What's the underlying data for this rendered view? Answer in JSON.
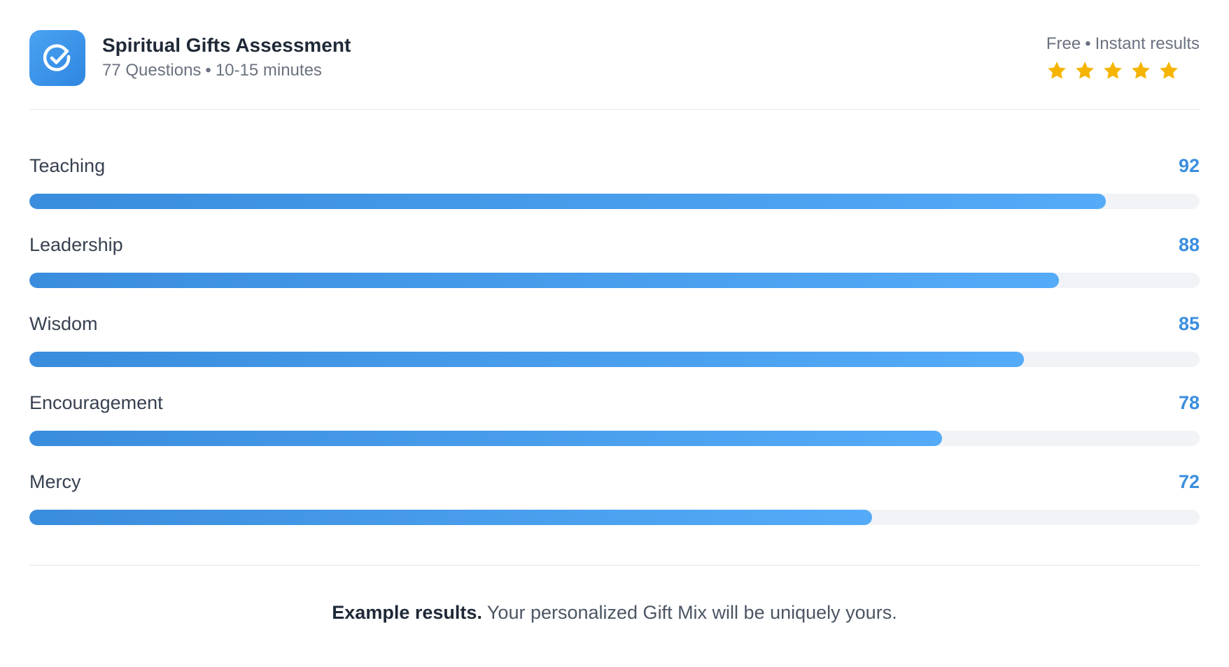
{
  "header": {
    "title": "Spiritual Gifts Assessment",
    "questions": "77 Questions",
    "separator": "•",
    "duration": "10-15 minutes",
    "price": "Free",
    "delivery": "Instant results",
    "rating_stars": 5,
    "icon": "check-circle-icon",
    "star_icon": "star-icon",
    "icon_color": "#3b8ede",
    "star_color": "#f5b400"
  },
  "results": [
    {
      "label": "Teaching",
      "score": "92",
      "fill_fraction": 0.92
    },
    {
      "label": "Leadership",
      "score": "88",
      "fill_fraction": 0.88
    },
    {
      "label": "Wisdom",
      "score": "85",
      "fill_fraction": 0.85
    },
    {
      "label": "Encouragement",
      "score": "78",
      "fill_fraction": 0.78
    },
    {
      "label": "Mercy",
      "score": "72",
      "fill_fraction": 0.72
    }
  ],
  "footer": {
    "note_bold": "Example results.",
    "note_text": " Your personalized Gift Mix will be uniquely yours."
  }
}
